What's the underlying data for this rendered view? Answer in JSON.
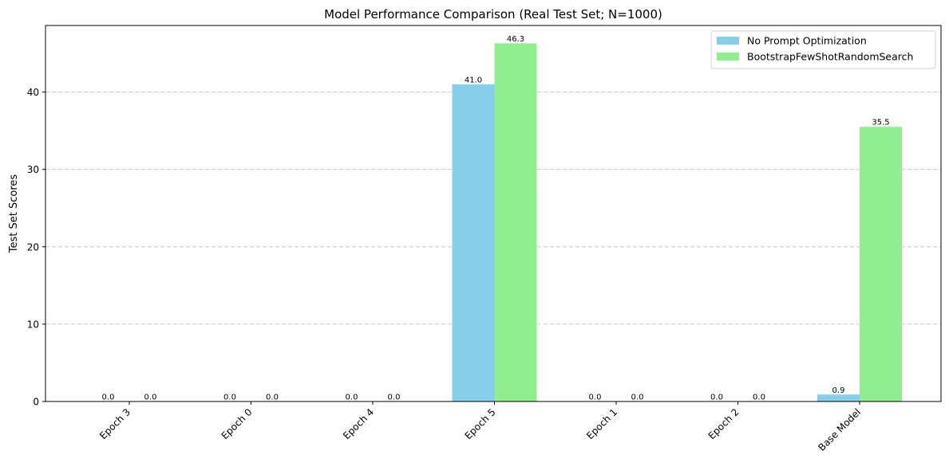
{
  "chart_data": {
    "type": "bar",
    "title": "Model Performance Comparison (Real Test Set; N=1000)",
    "xlabel": "",
    "ylabel": "Test Set Scores",
    "categories": [
      "Epoch 3",
      "Epoch 0",
      "Epoch 4",
      "Epoch 5",
      "Epoch 1",
      "Epoch 2",
      "Base Model"
    ],
    "series": [
      {
        "name": "No Prompt Optimization",
        "values": [
          0.0,
          0.0,
          0.0,
          41.0,
          0.0,
          0.0,
          0.9
        ],
        "labels": [
          "0.0",
          "0.0",
          "0.0",
          "41.0",
          "0.0",
          "0.0",
          "0.9"
        ],
        "color": "#87ceeb"
      },
      {
        "name": "BootstrapFewShotRandomSearch",
        "values": [
          0.0,
          0.0,
          0.0,
          46.3,
          0.0,
          0.0,
          35.5
        ],
        "labels": [
          "0.0",
          "0.0",
          "0.0",
          "46.3",
          "0.0",
          "0.0",
          "35.5"
        ],
        "color": "#90ee90"
      }
    ],
    "ylim": [
      0,
      48.6
    ],
    "yticks": [
      0,
      10,
      20,
      30,
      40
    ],
    "ytick_labels": [
      "0",
      "10",
      "20",
      "30",
      "40"
    ],
    "grid": "y-dashed",
    "legend_position": "top-right"
  }
}
